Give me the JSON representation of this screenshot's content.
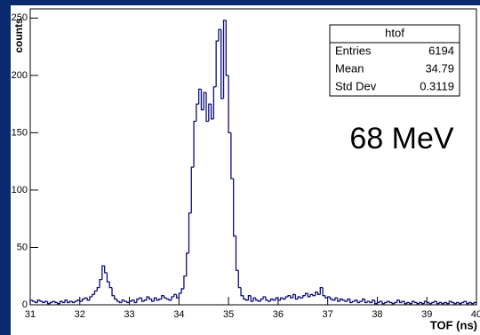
{
  "chart_data": {
    "type": "histogram",
    "x_label": "TOF (ns)",
    "y_label": "counts",
    "annotation": "68 MeV",
    "color": "#0c0c7a",
    "stats": {
      "title": "htof",
      "rows": [
        {
          "label": "Entries",
          "value": "6194"
        },
        {
          "label": "Mean",
          "value": "34.79"
        },
        {
          "label": "Std Dev",
          "value": "0.3119"
        }
      ]
    },
    "xlim": [
      31,
      40
    ],
    "ylim": [
      0,
      258
    ],
    "xticks": [
      31,
      32,
      33,
      34,
      35,
      36,
      37,
      38,
      39,
      40
    ],
    "yticks": [
      0,
      50,
      100,
      150,
      200,
      250
    ],
    "bins": [
      31,
      31.05,
      31.1,
      31.15,
      31.2,
      31.25,
      31.3,
      31.35,
      31.4,
      31.45,
      31.5,
      31.55,
      31.6,
      31.65,
      31.7,
      31.75,
      31.8,
      31.85,
      31.9,
      31.95,
      32,
      32.05,
      32.1,
      32.15,
      32.2,
      32.25,
      32.3,
      32.35,
      32.4,
      32.45,
      32.5,
      32.55,
      32.6,
      32.65,
      32.7,
      32.75,
      32.8,
      32.85,
      32.9,
      32.95,
      33,
      33.05,
      33.1,
      33.15,
      33.2,
      33.25,
      33.3,
      33.35,
      33.4,
      33.45,
      33.5,
      33.55,
      33.6,
      33.65,
      33.7,
      33.75,
      33.8,
      33.85,
      33.9,
      33.95,
      34,
      34.05,
      34.1,
      34.15,
      34.2,
      34.25,
      34.3,
      34.35,
      34.4,
      34.45,
      34.5,
      34.55,
      34.6,
      34.65,
      34.7,
      34.75,
      34.8,
      34.85,
      34.9,
      34.95,
      35,
      35.05,
      35.1,
      35.15,
      35.2,
      35.25,
      35.3,
      35.35,
      35.4,
      35.45,
      35.5,
      35.55,
      35.6,
      35.65,
      35.7,
      35.75,
      35.8,
      35.85,
      35.9,
      35.95,
      36,
      36.05,
      36.1,
      36.15,
      36.2,
      36.25,
      36.3,
      36.35,
      36.4,
      36.45,
      36.5,
      36.55,
      36.6,
      36.65,
      36.7,
      36.75,
      36.8,
      36.85,
      36.9,
      36.95,
      37,
      37.05,
      37.1,
      37.15,
      37.2,
      37.25,
      37.3,
      37.35,
      37.4,
      37.45,
      37.5,
      37.55,
      37.6,
      37.65,
      37.7,
      37.75,
      37.8,
      37.85,
      37.9,
      37.95,
      38,
      38.05,
      38.1,
      38.15,
      38.2,
      38.25,
      38.3,
      38.35,
      38.4,
      38.45,
      38.5,
      38.55,
      38.6,
      38.65,
      38.7,
      38.75,
      38.8,
      38.85,
      38.9,
      38.95,
      39,
      39.05,
      39.1,
      39.15,
      39.2,
      39.25,
      39.3,
      39.35,
      39.4,
      39.45,
      39.5,
      39.55,
      39.6,
      39.65,
      39.7,
      39.75,
      39.8,
      39.85,
      39.9,
      39.95,
      40
    ],
    "counts": [
      4,
      3,
      2,
      4,
      3,
      2,
      3,
      1,
      2,
      3,
      2,
      1,
      3,
      2,
      4,
      2,
      3,
      2,
      3,
      4,
      3,
      5,
      6,
      4,
      7,
      9,
      12,
      15,
      22,
      34,
      28,
      20,
      15,
      8,
      5,
      3,
      2,
      4,
      3,
      2,
      3,
      4,
      2,
      5,
      6,
      3,
      4,
      7,
      5,
      3,
      6,
      4,
      5,
      8,
      6,
      5,
      4,
      7,
      9,
      6,
      10,
      14,
      25,
      45,
      80,
      120,
      160,
      175,
      188,
      170,
      185,
      160,
      175,
      162,
      190,
      230,
      240,
      180,
      248,
      200,
      150,
      110,
      60,
      30,
      15,
      8,
      5,
      4,
      8,
      3,
      6,
      4,
      3,
      5,
      7,
      4,
      3,
      5,
      4,
      6,
      4,
      6,
      5,
      7,
      8,
      6,
      9,
      5,
      7,
      6,
      8,
      10,
      7,
      9,
      8,
      11,
      9,
      15,
      8,
      6,
      7,
      5,
      4,
      6,
      3,
      5,
      4,
      3,
      5,
      2,
      3,
      4,
      2,
      3,
      5,
      2,
      3,
      2,
      4,
      1,
      2,
      3,
      1,
      2,
      3,
      2,
      1,
      2,
      4,
      2,
      3,
      1,
      2,
      1,
      3,
      2,
      1,
      2,
      1,
      3,
      2,
      1,
      2,
      3,
      1,
      2,
      1,
      2,
      1,
      3,
      2,
      1,
      2,
      1,
      2,
      3,
      1,
      2,
      1,
      2
    ]
  }
}
